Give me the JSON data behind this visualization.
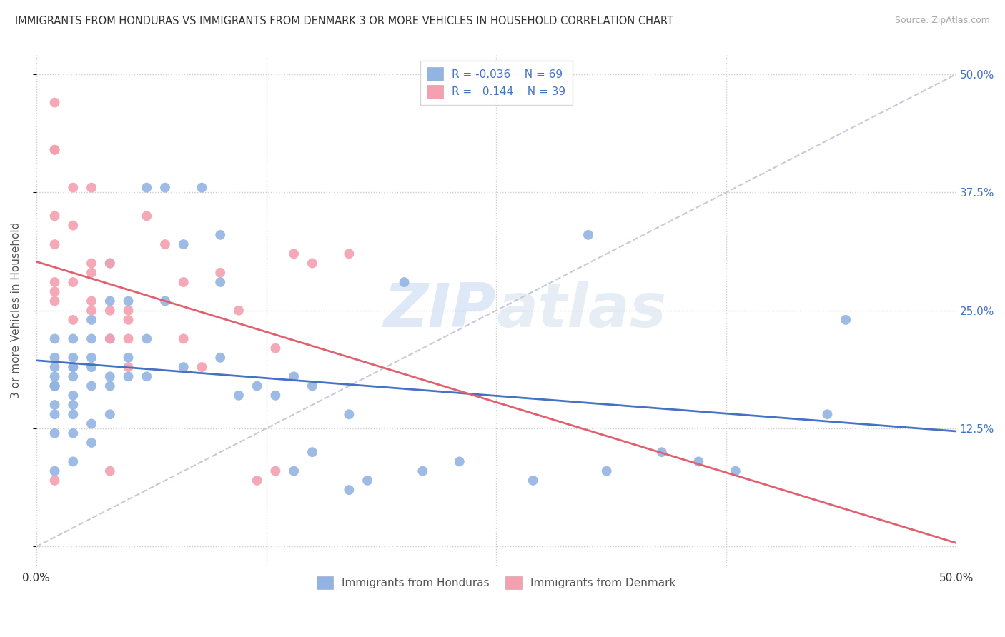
{
  "title": "IMMIGRANTS FROM HONDURAS VS IMMIGRANTS FROM DENMARK 3 OR MORE VEHICLES IN HOUSEHOLD CORRELATION CHART",
  "source": "Source: ZipAtlas.com",
  "ylabel": "3 or more Vehicles in Household",
  "xlim": [
    0.0,
    0.5
  ],
  "ylim": [
    -0.02,
    0.52
  ],
  "legend_R1": "-0.036",
  "legend_N1": "69",
  "legend_R2": "0.144",
  "legend_N2": "39",
  "color_honduras": "#92b4e3",
  "color_denmark": "#f4a0b0",
  "trendline_color_honduras": "#4472c4",
  "trendline_color_denmark": "#e06070",
  "trendline_dashed_color": "#c8c8d8",
  "watermark_zip": "ZIP",
  "watermark_atlas": "atlas",
  "honduras_x": [
    0.01,
    0.01,
    0.01,
    0.01,
    0.01,
    0.01,
    0.01,
    0.01,
    0.01,
    0.01,
    0.01,
    0.02,
    0.02,
    0.02,
    0.02,
    0.02,
    0.02,
    0.02,
    0.02,
    0.02,
    0.02,
    0.03,
    0.03,
    0.03,
    0.03,
    0.03,
    0.03,
    0.03,
    0.04,
    0.04,
    0.04,
    0.04,
    0.04,
    0.04,
    0.05,
    0.05,
    0.05,
    0.06,
    0.06,
    0.06,
    0.07,
    0.07,
    0.08,
    0.08,
    0.09,
    0.1,
    0.1,
    0.1,
    0.11,
    0.12,
    0.13,
    0.14,
    0.14,
    0.15,
    0.15,
    0.17,
    0.17,
    0.18,
    0.2,
    0.21,
    0.23,
    0.27,
    0.3,
    0.31,
    0.34,
    0.36,
    0.38,
    0.43,
    0.44
  ],
  "honduras_y": [
    0.2,
    0.22,
    0.19,
    0.18,
    0.17,
    0.17,
    0.17,
    0.15,
    0.14,
    0.12,
    0.08,
    0.22,
    0.2,
    0.19,
    0.19,
    0.18,
    0.16,
    0.15,
    0.14,
    0.12,
    0.09,
    0.24,
    0.22,
    0.2,
    0.19,
    0.17,
    0.13,
    0.11,
    0.3,
    0.26,
    0.22,
    0.18,
    0.17,
    0.14,
    0.26,
    0.2,
    0.18,
    0.38,
    0.22,
    0.18,
    0.38,
    0.26,
    0.32,
    0.19,
    0.38,
    0.33,
    0.28,
    0.2,
    0.16,
    0.17,
    0.16,
    0.18,
    0.08,
    0.17,
    0.1,
    0.14,
    0.06,
    0.07,
    0.28,
    0.08,
    0.09,
    0.07,
    0.33,
    0.08,
    0.1,
    0.09,
    0.08,
    0.14,
    0.24
  ],
  "denmark_x": [
    0.01,
    0.01,
    0.01,
    0.01,
    0.01,
    0.01,
    0.01,
    0.01,
    0.01,
    0.02,
    0.02,
    0.02,
    0.02,
    0.03,
    0.03,
    0.03,
    0.03,
    0.03,
    0.04,
    0.04,
    0.04,
    0.04,
    0.05,
    0.05,
    0.05,
    0.05,
    0.06,
    0.07,
    0.08,
    0.08,
    0.09,
    0.1,
    0.11,
    0.12,
    0.13,
    0.13,
    0.14,
    0.15,
    0.17
  ],
  "denmark_y": [
    0.47,
    0.42,
    0.42,
    0.35,
    0.32,
    0.28,
    0.27,
    0.26,
    0.07,
    0.38,
    0.34,
    0.28,
    0.24,
    0.38,
    0.3,
    0.29,
    0.26,
    0.25,
    0.3,
    0.25,
    0.22,
    0.08,
    0.25,
    0.24,
    0.22,
    0.19,
    0.35,
    0.32,
    0.28,
    0.22,
    0.19,
    0.29,
    0.25,
    0.07,
    0.21,
    0.08,
    0.31,
    0.3,
    0.31
  ]
}
